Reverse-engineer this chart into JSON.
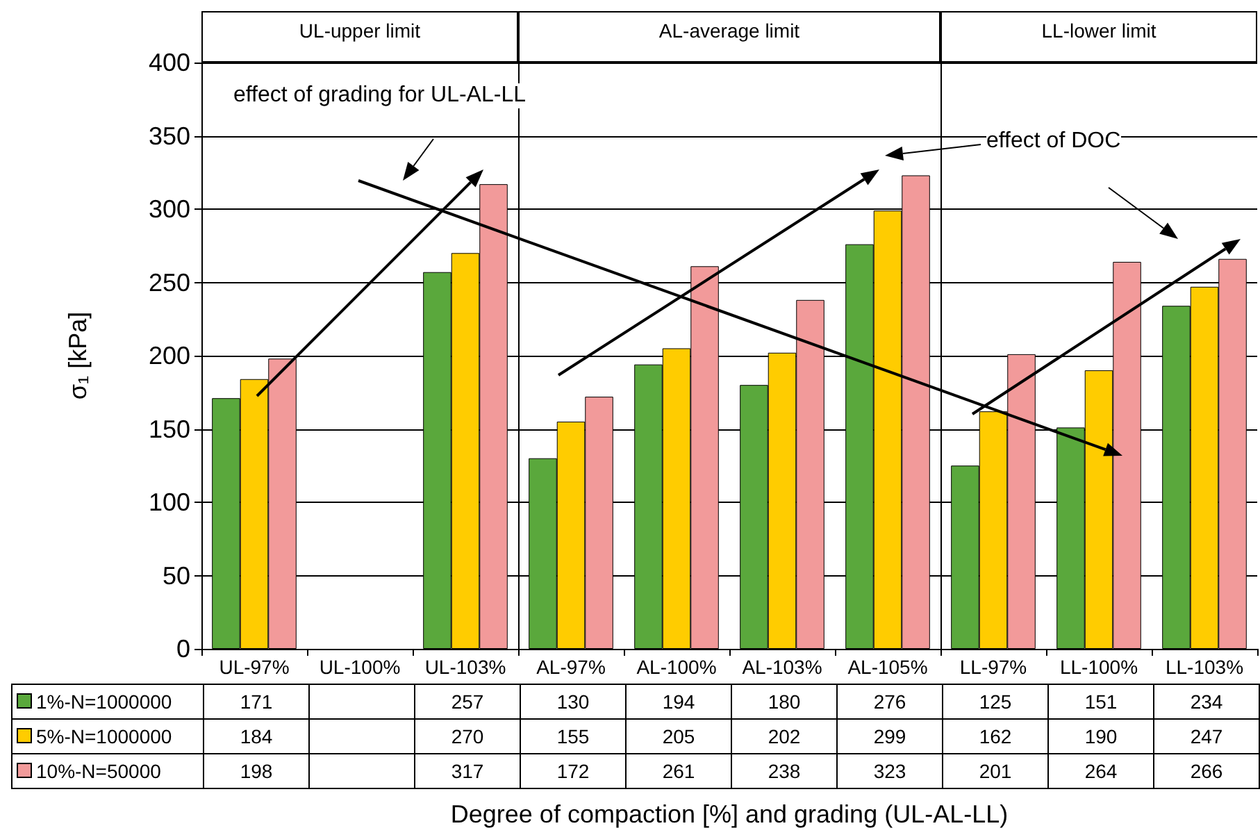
{
  "chart_data": {
    "type": "bar",
    "ylabel": "σ₁ [kPa]",
    "xlabel": "Degree of compaction [%] and grading (UL-AL-LL)",
    "categories": [
      "UL-97%",
      "UL-100%",
      "UL-103%",
      "AL-97%",
      "AL-100%",
      "AL-103%",
      "AL-105%",
      "LL-97%",
      "LL-100%",
      "LL-103%"
    ],
    "series": [
      {
        "name": "1%-N=1000000",
        "color": "#5aa83c",
        "values": [
          171,
          null,
          257,
          130,
          194,
          180,
          276,
          125,
          151,
          234
        ]
      },
      {
        "name": "5%-N=1000000",
        "color": "#ffcc00",
        "values": [
          184,
          null,
          270,
          155,
          205,
          202,
          299,
          162,
          190,
          247
        ]
      },
      {
        "name": "10%-N=50000",
        "color": "#f29a9a",
        "values": [
          198,
          null,
          317,
          172,
          261,
          238,
          323,
          201,
          264,
          266
        ]
      }
    ],
    "ylim": [
      0,
      400
    ],
    "yticks": [
      0,
      50,
      100,
      150,
      200,
      250,
      300,
      350,
      400
    ],
    "grid": "y",
    "legend": "bottom",
    "data_labels": true,
    "annotations": [
      "UL-upper limit",
      "AL-average limit",
      "LL-lower limit",
      "effect of grading for UL-AL-LL",
      "effect of DOC"
    ]
  }
}
